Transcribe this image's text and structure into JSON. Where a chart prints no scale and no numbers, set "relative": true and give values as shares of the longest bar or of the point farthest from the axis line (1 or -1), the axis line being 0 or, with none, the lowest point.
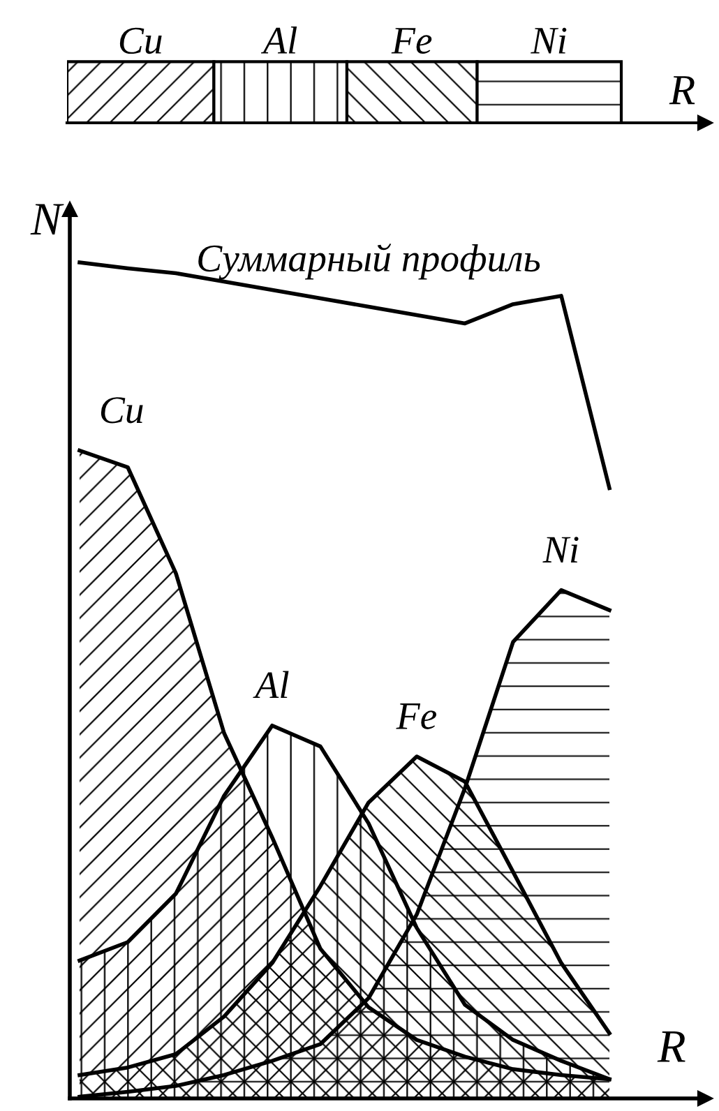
{
  "chart_data": [
    {
      "type": "bar",
      "orientation": "horizontal",
      "stacked": true,
      "relative": true,
      "xlabel": "R",
      "categories": [
        null
      ],
      "series": [
        {
          "name": "Cu",
          "color": "#000000",
          "values": [
            0.265
          ]
        },
        {
          "name": "Al",
          "color": "#000000",
          "values": [
            0.24
          ]
        },
        {
          "name": "Fe",
          "color": "#000000",
          "values": [
            0.235
          ]
        },
        {
          "name": "Ni",
          "color": "#000000",
          "values": [
            0.26
          ]
        }
      ]
    },
    {
      "type": "area",
      "relative": true,
      "xlabel": "R",
      "ylabel": "N",
      "categories": [
        null,
        null,
        null,
        null,
        null,
        null,
        null,
        null,
        null,
        null,
        null,
        null
      ],
      "series": [
        {
          "name": "Суммарный профиль",
          "type": "line",
          "color": "#000000",
          "values": [
            1.0,
            0.993,
            0.987,
            0.977,
            0.967,
            0.957,
            0.947,
            0.937,
            0.927,
            0.95,
            0.96,
            0.73
          ]
        },
        {
          "name": "Cu",
          "color": "#000000",
          "values": [
            0.775,
            0.755,
            0.628,
            0.437,
            0.312,
            0.179,
            0.109,
            0.07,
            0.05,
            0.035,
            0.028,
            0.023
          ]
        },
        {
          "name": "Al",
          "color": "#000000",
          "values": [
            0.165,
            0.187,
            0.245,
            0.362,
            0.446,
            0.421,
            0.329,
            0.204,
            0.112,
            0.07,
            0.045,
            0.023
          ]
        },
        {
          "name": "Fe",
          "color": "#000000",
          "values": [
            0.028,
            0.037,
            0.053,
            0.098,
            0.162,
            0.254,
            0.354,
            0.409,
            0.379,
            0.271,
            0.162,
            0.078
          ]
        },
        {
          "name": "Ni",
          "color": "#000000",
          "values": [
            0.002,
            0.008,
            0.015,
            0.028,
            0.045,
            0.065,
            0.12,
            0.22,
            0.371,
            0.546,
            0.608,
            0.584
          ]
        }
      ]
    }
  ]
}
